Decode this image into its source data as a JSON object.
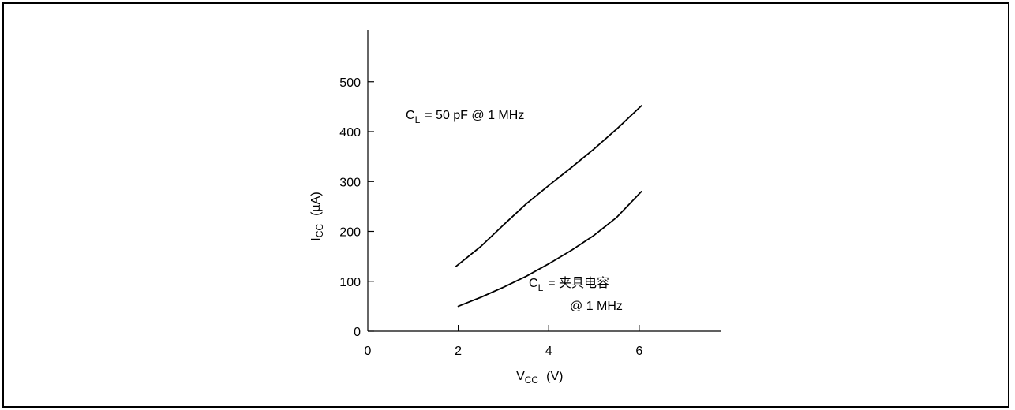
{
  "chart_data": {
    "type": "line",
    "x_axis": {
      "label_main": "V",
      "label_sub": "CC",
      "label_unit": "(V)",
      "ticks": [
        0,
        2,
        4,
        6
      ],
      "range": [
        0,
        7.8
      ]
    },
    "y_axis": {
      "label_main": "I",
      "label_sub": "CC",
      "label_unit": "(µA)",
      "ticks": [
        0,
        100,
        200,
        300,
        400,
        500
      ],
      "range": [
        0,
        600
      ]
    },
    "grid": false,
    "series": [
      {
        "annotation": {
          "main": "C",
          "sub": "L",
          "rest": "= 50 pF @ 1 MHz",
          "line2": ""
        },
        "x": [
          1.95,
          2.5,
          3.0,
          3.5,
          4.0,
          4.5,
          5.0,
          5.5,
          6.05
        ],
        "y": [
          130,
          170,
          213,
          255,
          292,
          328,
          365,
          405,
          452
        ]
      },
      {
        "annotation": {
          "main": "C",
          "sub": "L",
          "rest": "= 夹具电容",
          "line2": "@ 1 MHz"
        },
        "x": [
          2.0,
          2.5,
          3.0,
          3.5,
          4.0,
          4.5,
          5.0,
          5.5,
          6.05
        ],
        "y": [
          50,
          68,
          88,
          110,
          135,
          162,
          192,
          228,
          280
        ]
      }
    ]
  }
}
